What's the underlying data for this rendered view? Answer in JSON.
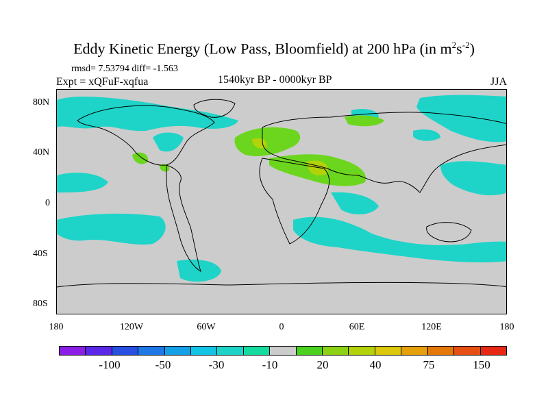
{
  "title": {
    "main": "Eddy Kinetic Energy (Low Pass, Bloomfield) at 200 hPa (in m",
    "sup1": "2",
    "mid": "s",
    "sup2": "-2",
    "end": ")"
  },
  "stats": "rmsd= 7.53794 diff= -1.563",
  "expt": "Expt = xQFuF-xqfua",
  "period": "1540kyr BP - 0000kyr BP",
  "season": "JJA",
  "y_axis": [
    "80N",
    "40N",
    "0",
    "40S",
    "80S"
  ],
  "x_axis": [
    "180",
    "120W",
    "60W",
    "0",
    "60E",
    "120E",
    "180"
  ],
  "colorbar": {
    "colors": [
      "#8a1ee6",
      "#5a28e6",
      "#2850e0",
      "#1e78e6",
      "#14a0e6",
      "#14c4e6",
      "#1ed4c8",
      "#14dca0",
      "#cccccc",
      "#4cd21e",
      "#8cd214",
      "#b4d20a",
      "#dcc80a",
      "#e6a00a",
      "#e6780a",
      "#e65014",
      "#e62814"
    ],
    "labels": [
      "-100",
      "-50",
      "-30",
      "-10",
      "20",
      "40",
      "75",
      "150"
    ]
  }
}
